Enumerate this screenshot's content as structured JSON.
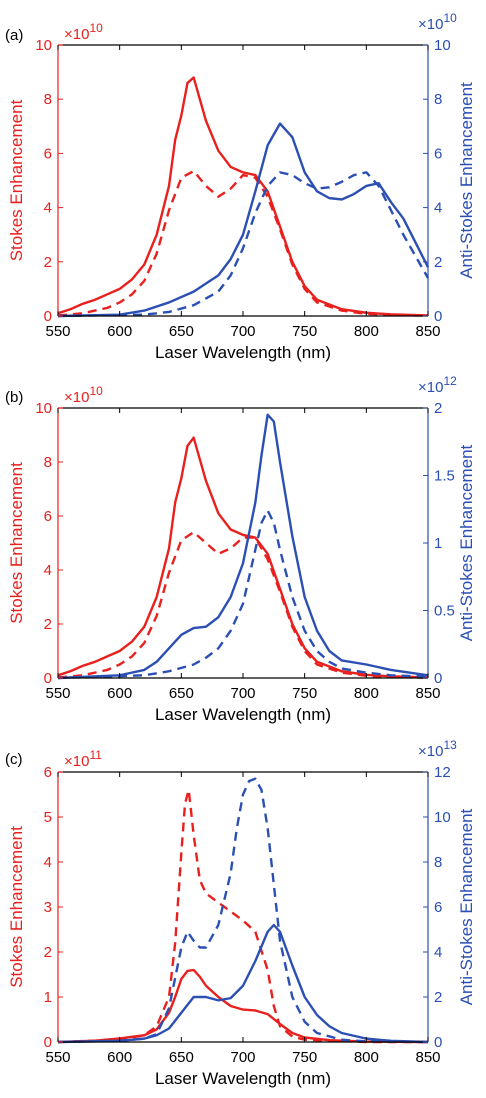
{
  "colors": {
    "stokes": "#e8201e",
    "anti_stokes": "#2b4fb3",
    "axis": "#000000"
  },
  "chart_data": [
    {
      "type": "line",
      "panel_label": "(a)",
      "xlabel": "Laser Wavelength (nm)",
      "xlim": [
        550,
        850
      ],
      "xticks": [
        550,
        600,
        650,
        700,
        750,
        800,
        850
      ],
      "left_axis": {
        "label": "Stokes Enhancement",
        "multiplier": "×10",
        "exponent": "10",
        "ylim": [
          0,
          10
        ],
        "ticks": [
          0,
          2,
          4,
          6,
          8,
          10
        ]
      },
      "right_axis": {
        "label": "Anti-Stokes Enhancement",
        "multiplier": "×10",
        "exponent": "10",
        "ylim": [
          0,
          10
        ],
        "ticks": [
          0,
          2,
          4,
          6,
          8,
          10
        ]
      },
      "series": [
        {
          "axis": "left",
          "style": "solid",
          "x": [
            550,
            560,
            570,
            580,
            590,
            600,
            610,
            620,
            630,
            640,
            645,
            650,
            655,
            660,
            665,
            670,
            680,
            690,
            700,
            710,
            720,
            730,
            740,
            750,
            760,
            780,
            800,
            820,
            850
          ],
          "values": [
            0.1,
            0.25,
            0.45,
            0.6,
            0.8,
            1.0,
            1.35,
            1.9,
            3.0,
            4.8,
            6.5,
            7.4,
            8.6,
            8.8,
            8.0,
            7.2,
            6.1,
            5.5,
            5.3,
            5.2,
            4.6,
            3.3,
            2.0,
            1.1,
            0.6,
            0.25,
            0.12,
            0.06,
            0.02
          ]
        },
        {
          "axis": "left",
          "style": "dashed",
          "x": [
            550,
            570,
            590,
            600,
            610,
            620,
            630,
            640,
            650,
            660,
            670,
            680,
            690,
            700,
            710,
            720,
            730,
            740,
            750,
            760,
            780,
            800,
            820,
            850
          ],
          "values": [
            0.02,
            0.1,
            0.3,
            0.5,
            0.8,
            1.3,
            2.3,
            3.9,
            5.1,
            5.35,
            4.8,
            4.4,
            4.7,
            5.2,
            5.1,
            4.4,
            3.2,
            1.9,
            1.0,
            0.5,
            0.2,
            0.08,
            0.04,
            0.01
          ]
        },
        {
          "axis": "right",
          "style": "solid",
          "x": [
            550,
            600,
            620,
            640,
            660,
            680,
            690,
            700,
            710,
            720,
            730,
            740,
            750,
            760,
            770,
            780,
            790,
            800,
            810,
            820,
            830,
            840,
            850
          ],
          "values": [
            0.0,
            0.05,
            0.2,
            0.5,
            0.9,
            1.5,
            2.1,
            3.0,
            4.6,
            6.3,
            7.1,
            6.6,
            5.3,
            4.6,
            4.35,
            4.3,
            4.5,
            4.8,
            4.9,
            4.2,
            3.6,
            2.7,
            1.8
          ]
        },
        {
          "axis": "right",
          "style": "dashed",
          "x": [
            550,
            620,
            640,
            660,
            680,
            690,
            700,
            710,
            720,
            730,
            740,
            750,
            760,
            770,
            780,
            790,
            800,
            810,
            820,
            830,
            840,
            850
          ],
          "values": [
            0.0,
            0.05,
            0.15,
            0.4,
            0.9,
            1.5,
            2.5,
            3.8,
            4.8,
            5.3,
            5.2,
            4.9,
            4.7,
            4.75,
            4.95,
            5.2,
            5.3,
            4.8,
            3.9,
            3.0,
            2.2,
            1.4
          ]
        }
      ]
    },
    {
      "type": "line",
      "panel_label": "(b)",
      "xlabel": "Laser Wavelength (nm)",
      "xlim": [
        550,
        850
      ],
      "xticks": [
        550,
        600,
        650,
        700,
        750,
        800,
        850
      ],
      "left_axis": {
        "label": "Stokes Enhancement",
        "multiplier": "×10",
        "exponent": "10",
        "ylim": [
          0,
          10
        ],
        "ticks": [
          0,
          2,
          4,
          6,
          8,
          10
        ]
      },
      "right_axis": {
        "label": "Anti-Stokes Enhancement",
        "multiplier": "×10",
        "exponent": "12",
        "ylim": [
          0,
          2
        ],
        "ticks": [
          0,
          0.5,
          1,
          1.5,
          2
        ]
      },
      "series": [
        {
          "axis": "left",
          "style": "solid",
          "x": [
            550,
            560,
            570,
            580,
            590,
            600,
            610,
            620,
            630,
            640,
            645,
            650,
            655,
            660,
            665,
            670,
            680,
            690,
            700,
            710,
            720,
            730,
            740,
            750,
            760,
            780,
            800,
            820,
            850
          ],
          "values": [
            0.1,
            0.25,
            0.45,
            0.6,
            0.8,
            1.0,
            1.35,
            1.9,
            3.0,
            4.8,
            6.5,
            7.4,
            8.6,
            8.9,
            8.1,
            7.3,
            6.1,
            5.5,
            5.3,
            5.2,
            4.6,
            3.3,
            2.0,
            1.1,
            0.6,
            0.25,
            0.12,
            0.06,
            0.02
          ]
        },
        {
          "axis": "left",
          "style": "dashed",
          "x": [
            550,
            570,
            590,
            600,
            610,
            620,
            630,
            640,
            650,
            660,
            670,
            680,
            690,
            700,
            710,
            720,
            730,
            740,
            750,
            760,
            780,
            800,
            820,
            850
          ],
          "values": [
            0.02,
            0.1,
            0.3,
            0.5,
            0.8,
            1.3,
            2.3,
            3.9,
            5.1,
            5.4,
            5.0,
            4.6,
            4.8,
            5.2,
            5.2,
            4.4,
            3.2,
            1.9,
            1.0,
            0.5,
            0.2,
            0.08,
            0.04,
            0.01
          ]
        },
        {
          "axis": "right",
          "style": "solid",
          "x": [
            550,
            600,
            620,
            630,
            640,
            650,
            660,
            670,
            680,
            690,
            700,
            710,
            715,
            720,
            725,
            730,
            740,
            750,
            760,
            770,
            780,
            800,
            820,
            850
          ],
          "values": [
            0.0,
            0.02,
            0.06,
            0.12,
            0.22,
            0.32,
            0.37,
            0.38,
            0.45,
            0.6,
            0.85,
            1.3,
            1.65,
            1.95,
            1.9,
            1.6,
            1.05,
            0.6,
            0.35,
            0.2,
            0.13,
            0.1,
            0.06,
            0.02
          ]
        },
        {
          "axis": "right",
          "style": "dashed",
          "x": [
            550,
            620,
            640,
            660,
            670,
            680,
            690,
            700,
            710,
            715,
            720,
            725,
            730,
            740,
            750,
            760,
            770,
            780,
            800,
            820,
            850
          ],
          "values": [
            0.0,
            0.02,
            0.05,
            0.1,
            0.15,
            0.22,
            0.35,
            0.55,
            0.95,
            1.15,
            1.24,
            1.15,
            0.95,
            0.6,
            0.35,
            0.2,
            0.12,
            0.07,
            0.04,
            0.02,
            0.01
          ]
        }
      ]
    },
    {
      "type": "line",
      "panel_label": "(c)",
      "xlabel": "Laser Wavelength (nm)",
      "xlim": [
        550,
        850
      ],
      "xticks": [
        550,
        600,
        650,
        700,
        750,
        800,
        850
      ],
      "left_axis": {
        "label": "Stokes Enhancement",
        "multiplier": "×10",
        "exponent": "11",
        "ylim": [
          0,
          6
        ],
        "ticks": [
          0,
          1,
          2,
          3,
          4,
          5,
          6
        ]
      },
      "right_axis": {
        "label": "Anti-Stokes Enhancement",
        "multiplier": "×10",
        "exponent": "13",
        "ylim": [
          0,
          12
        ],
        "ticks": [
          0,
          2,
          4,
          6,
          8,
          10,
          12
        ]
      },
      "series": [
        {
          "axis": "left",
          "style": "solid",
          "x": [
            550,
            580,
            600,
            620,
            630,
            640,
            645,
            650,
            655,
            660,
            665,
            670,
            680,
            690,
            700,
            710,
            720,
            730,
            740,
            750,
            770,
            800,
            850
          ],
          "values": [
            0.0,
            0.03,
            0.08,
            0.15,
            0.28,
            0.65,
            1.0,
            1.4,
            1.58,
            1.6,
            1.45,
            1.25,
            1.0,
            0.8,
            0.72,
            0.7,
            0.62,
            0.4,
            0.2,
            0.1,
            0.04,
            0.01,
            0.0
          ]
        },
        {
          "axis": "left",
          "style": "dashed",
          "x": [
            550,
            600,
            620,
            630,
            640,
            645,
            650,
            653,
            656,
            660,
            665,
            670,
            680,
            690,
            700,
            710,
            720,
            725,
            730,
            740,
            750,
            800,
            850
          ],
          "values": [
            0.0,
            0.05,
            0.15,
            0.35,
            1.0,
            2.2,
            4.2,
            5.3,
            5.6,
            4.6,
            3.6,
            3.3,
            3.1,
            2.9,
            2.7,
            2.45,
            1.6,
            0.8,
            0.35,
            0.12,
            0.05,
            0.0,
            0.0
          ]
        },
        {
          "axis": "right",
          "style": "solid",
          "x": [
            550,
            600,
            620,
            630,
            640,
            650,
            660,
            670,
            680,
            690,
            700,
            710,
            720,
            725,
            730,
            740,
            750,
            760,
            770,
            780,
            800,
            820,
            850
          ],
          "values": [
            0.0,
            0.05,
            0.15,
            0.3,
            0.6,
            1.3,
            2.0,
            2.0,
            1.85,
            1.95,
            2.5,
            3.6,
            4.9,
            5.2,
            4.9,
            3.4,
            2.0,
            1.2,
            0.7,
            0.4,
            0.15,
            0.05,
            0.0
          ]
        },
        {
          "axis": "right",
          "style": "dashed",
          "x": [
            550,
            600,
            620,
            630,
            640,
            650,
            655,
            660,
            665,
            670,
            680,
            690,
            695,
            700,
            705,
            710,
            715,
            720,
            725,
            730,
            740,
            750,
            760,
            780,
            800,
            850
          ],
          "values": [
            0.0,
            0.05,
            0.15,
            0.35,
            1.5,
            4.2,
            4.9,
            4.5,
            4.2,
            4.2,
            5.2,
            7.5,
            9.5,
            11.0,
            11.6,
            11.7,
            11.2,
            9.5,
            7.0,
            4.5,
            2.0,
            0.9,
            0.4,
            0.1,
            0.03,
            0.0
          ]
        }
      ]
    }
  ]
}
